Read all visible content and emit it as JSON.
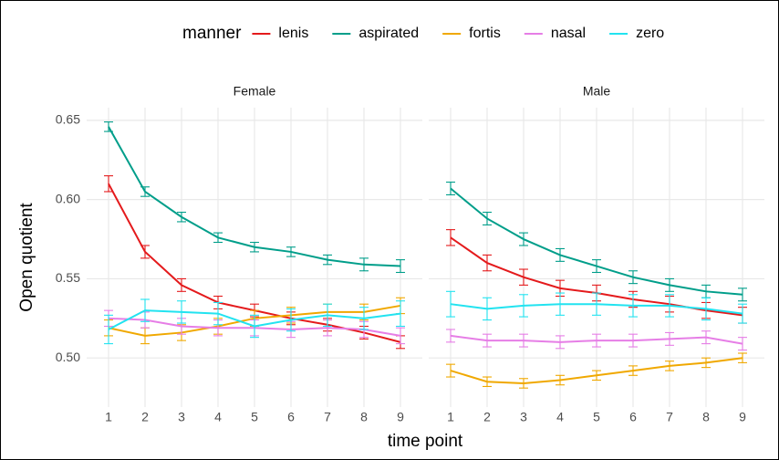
{
  "chart_data": {
    "type": "line",
    "x_label": "time point",
    "y_label": "Open quotient",
    "xlim": [
      0.4,
      9.6
    ],
    "ylim": [
      0.469,
      0.658
    ],
    "xticks": [
      1,
      2,
      3,
      4,
      5,
      6,
      7,
      8,
      9
    ],
    "yticks": [
      {
        "value": 0.5,
        "label": "0.50"
      },
      0.55,
      {
        "value": 0.6,
        "label": "0.60"
      },
      0.65
    ],
    "grid": true,
    "x": [
      1,
      2,
      3,
      4,
      5,
      6,
      7,
      8,
      9
    ],
    "legend": {
      "title": "manner",
      "position": "top",
      "entries": [
        {
          "name": "lenis",
          "color": "#e41a1c"
        },
        {
          "name": "aspirated",
          "color": "#009e8a"
        },
        {
          "name": "fortis",
          "color": "#f0a800"
        },
        {
          "name": "nasal",
          "color": "#e67ee6"
        },
        {
          "name": "zero",
          "color": "#22e3f0"
        }
      ]
    },
    "facets": [
      {
        "title": "Female",
        "series": [
          {
            "values": [
              0.61,
              0.567,
              0.546,
              0.535,
              0.53,
              0.525,
              0.521,
              0.516,
              0.51
            ],
            "errors": [
              0.005,
              0.004,
              0.004,
              0.004,
              0.004,
              0.004,
              0.004,
              0.004,
              0.004
            ]
          },
          {
            "values": [
              0.646,
              0.605,
              0.589,
              0.576,
              0.57,
              0.567,
              0.562,
              0.559,
              0.558
            ],
            "errors": [
              0.003,
              0.003,
              0.003,
              0.003,
              0.003,
              0.003,
              0.003,
              0.004,
              0.004
            ]
          },
          {
            "values": [
              0.519,
              0.514,
              0.516,
              0.52,
              0.525,
              0.527,
              0.529,
              0.529,
              0.533
            ],
            "errors": [
              0.005,
              0.005,
              0.005,
              0.005,
              0.005,
              0.005,
              0.005,
              0.005,
              0.005
            ]
          },
          {
            "values": [
              0.525,
              0.524,
              0.52,
              0.519,
              0.519,
              0.518,
              0.519,
              0.518,
              0.514
            ],
            "errors": [
              0.005,
              0.005,
              0.005,
              0.005,
              0.005,
              0.005,
              0.005,
              0.005,
              0.005
            ]
          },
          {
            "values": [
              0.518,
              0.53,
              0.529,
              0.528,
              0.52,
              0.524,
              0.527,
              0.525,
              0.528
            ],
            "errors": [
              0.009,
              0.007,
              0.007,
              0.007,
              0.007,
              0.007,
              0.007,
              0.007,
              0.008
            ]
          }
        ]
      },
      {
        "title": "Male",
        "series": [
          {
            "values": [
              0.576,
              0.56,
              0.551,
              0.544,
              0.541,
              0.537,
              0.534,
              0.53,
              0.527
            ],
            "errors": [
              0.005,
              0.005,
              0.005,
              0.005,
              0.005,
              0.005,
              0.005,
              0.005,
              0.005
            ]
          },
          {
            "values": [
              0.607,
              0.588,
              0.575,
              0.565,
              0.558,
              0.551,
              0.546,
              0.542,
              0.54
            ],
            "errors": [
              0.004,
              0.004,
              0.004,
              0.004,
              0.004,
              0.004,
              0.004,
              0.004,
              0.004
            ]
          },
          {
            "values": [
              0.492,
              0.485,
              0.484,
              0.486,
              0.489,
              0.492,
              0.495,
              0.497,
              0.5
            ],
            "errors": [
              0.004,
              0.003,
              0.003,
              0.003,
              0.003,
              0.003,
              0.003,
              0.003,
              0.003
            ]
          },
          {
            "values": [
              0.514,
              0.511,
              0.511,
              0.51,
              0.511,
              0.511,
              0.512,
              0.513,
              0.509
            ],
            "errors": [
              0.004,
              0.004,
              0.004,
              0.004,
              0.004,
              0.004,
              0.004,
              0.004,
              0.004
            ]
          },
          {
            "values": [
              0.534,
              0.531,
              0.533,
              0.534,
              0.534,
              0.533,
              0.533,
              0.531,
              0.528
            ],
            "errors": [
              0.008,
              0.007,
              0.007,
              0.007,
              0.007,
              0.007,
              0.007,
              0.007,
              0.006
            ]
          }
        ]
      }
    ]
  }
}
